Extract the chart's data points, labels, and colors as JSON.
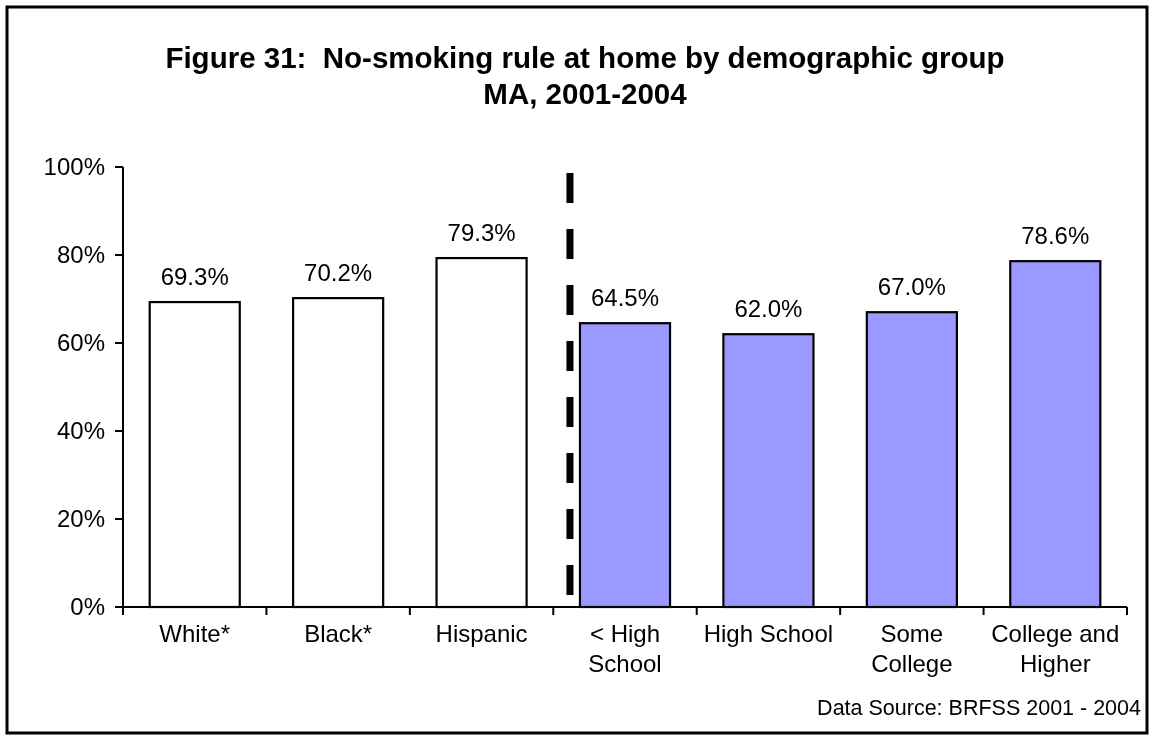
{
  "chart_data": {
    "type": "bar",
    "title": "Figure 31:  No-smoking rule at home by demographic group",
    "subtitle": "MA, 2001-2004",
    "categories": [
      "White*",
      "Black*",
      "Hispanic",
      "< High School",
      "High School",
      "Some College",
      "College and Higher"
    ],
    "values": [
      69.3,
      70.2,
      79.3,
      64.5,
      62.0,
      67.0,
      78.6
    ],
    "colors": [
      "#ffffff",
      "#ffffff",
      "#ffffff",
      "#9999ff",
      "#9999ff",
      "#9999ff",
      "#9999ff"
    ],
    "value_labels": [
      "69.3%",
      "70.2%",
      "79.3%",
      "64.5%",
      "62.0%",
      "67.0%",
      "78.6%"
    ],
    "ylim": [
      0,
      100
    ],
    "yticks": [
      {
        "value": 0,
        "label": "0%"
      },
      {
        "value": 20,
        "label": "20%"
      },
      {
        "value": 40,
        "label": "40%"
      },
      {
        "value": 60,
        "label": "60%"
      },
      {
        "value": 80,
        "label": "80%"
      },
      {
        "value": 100,
        "label": "100%"
      }
    ],
    "annotations": [
      "Data Source: BRFSS 2001 - 2004"
    ]
  }
}
